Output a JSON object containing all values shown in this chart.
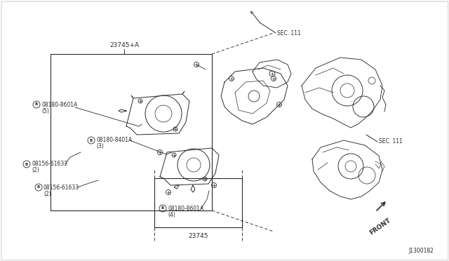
{
  "bg_color": "#f5f5f5",
  "line_color": "#2a2a2a",
  "fig_width": 6.4,
  "fig_height": 3.72,
  "dpi": 100,
  "labels": {
    "23745_A": "23745+A",
    "part1": "08180-8601A",
    "part1_qty": "(5)",
    "part2": "08180-8401A",
    "part2_qty": "(3)",
    "part3a": "08156-61633",
    "part3a_qty": "(2)",
    "part3b": "08156-61633",
    "part3b_qty": "(2)",
    "part4": "08180-8601A",
    "part4_qty": "(4)",
    "label_23745": "23745",
    "sec111a": "SEC. 111",
    "sec111b": "SEC. 111",
    "front": "FRONT",
    "docnum": "J1300182"
  }
}
